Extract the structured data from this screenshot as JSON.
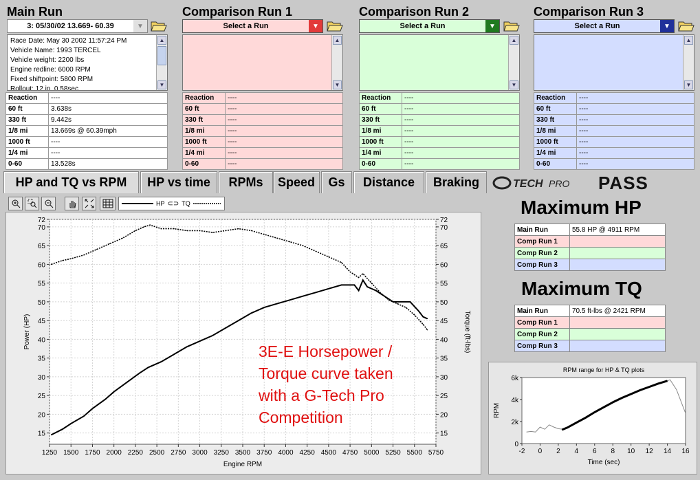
{
  "colors": {
    "main": "#ffffff",
    "comp1": "#ffd9d9",
    "comp2": "#d9ffd9",
    "comp3": "#d3ddff",
    "comp1_drop": "#e23a3a",
    "comp2_drop": "#1f7a1f",
    "comp3_drop": "#20309a"
  },
  "main_run": {
    "title": "Main Run",
    "selected": "3:   05/30/02 13.669- 60.39",
    "info_lines": [
      "Race Date: May 30 2002  11:57:24 PM",
      "Vehicle Name: 1993 TERCEL",
      "Vehicle weight: 2200 lbs",
      "Engine redline: 6000 RPM",
      "Fixed shiftpoint: 5800 RPM",
      "Rollout: 12 in. 0.58sec"
    ],
    "results": [
      {
        "label": "Reaction",
        "value": "----"
      },
      {
        "label": "60 ft",
        "value": "3.638s"
      },
      {
        "label": "330 ft",
        "value": "9.442s"
      },
      {
        "label": "1/8 mi",
        "value": "13.669s @ 60.39mph"
      },
      {
        "label": "1000 ft",
        "value": "----"
      },
      {
        "label": "1/4 mi",
        "value": "----"
      },
      {
        "label": "0-60",
        "value": "13.528s"
      }
    ]
  },
  "comparison_runs": [
    {
      "title": "Comparison Run 1",
      "select_label": "Select a Run",
      "results": [
        {
          "label": "Reaction",
          "value": "----"
        },
        {
          "label": "60 ft",
          "value": "----"
        },
        {
          "label": "330 ft",
          "value": "----"
        },
        {
          "label": "1/8 mi",
          "value": "----"
        },
        {
          "label": "1000 ft",
          "value": "----"
        },
        {
          "label": "1/4 mi",
          "value": "----"
        },
        {
          "label": "0-60",
          "value": "----"
        }
      ]
    },
    {
      "title": "Comparison Run 2",
      "select_label": "Select a Run",
      "results": [
        {
          "label": "Reaction",
          "value": "----"
        },
        {
          "label": "60 ft",
          "value": "----"
        },
        {
          "label": "330 ft",
          "value": "----"
        },
        {
          "label": "1/8 mi",
          "value": "----"
        },
        {
          "label": "1000 ft",
          "value": "----"
        },
        {
          "label": "1/4 mi",
          "value": "----"
        },
        {
          "label": "0-60",
          "value": "----"
        }
      ]
    },
    {
      "title": "Comparison Run 3",
      "select_label": "Select a Run",
      "results": [
        {
          "label": "Reaction",
          "value": "----"
        },
        {
          "label": "60 ft",
          "value": "----"
        },
        {
          "label": "330 ft",
          "value": "----"
        },
        {
          "label": "1/8 mi",
          "value": "----"
        },
        {
          "label": "1000 ft",
          "value": "----"
        },
        {
          "label": "1/4 mi",
          "value": "----"
        },
        {
          "label": "0-60",
          "value": "----"
        }
      ]
    }
  ],
  "tabs": [
    {
      "label": "HP and TQ vs RPM",
      "active": true
    },
    {
      "label": "HP vs time"
    },
    {
      "label": "RPMs"
    },
    {
      "label": "Speed"
    },
    {
      "label": "Gs"
    },
    {
      "label": "Distance"
    },
    {
      "label": "Braking"
    }
  ],
  "brand": {
    "logo_text": "G-TECH PRO",
    "suffix": "PASS"
  },
  "toolbar": {
    "icons": [
      "zoom-icon",
      "zoom-rect-icon",
      "zoom-out-icon",
      "pan-hand-icon",
      "zoom-fit-icon",
      "grid-icon"
    ],
    "legend": {
      "hp": "HP",
      "tq": "TQ"
    }
  },
  "annotation": [
    "3E-E Horsepower /",
    "Torque curve taken",
    "with a G-Tech Pro",
    "Competition"
  ],
  "max_hp": {
    "title": "Maximum HP",
    "rows": [
      {
        "label": "Main Run",
        "value": "55.8 HP @ 4911 RPM"
      },
      {
        "label": "Comp Run 1",
        "value": ""
      },
      {
        "label": "Comp Run 2",
        "value": ""
      },
      {
        "label": "Comp Run 3",
        "value": ""
      }
    ]
  },
  "max_tq": {
    "title": "Maximum TQ",
    "rows": [
      {
        "label": "Main Run",
        "value": "70.5 ft-lbs @ 2421 RPM"
      },
      {
        "label": "Comp Run 1",
        "value": ""
      },
      {
        "label": "Comp Run 2",
        "value": ""
      },
      {
        "label": "Comp Run 3",
        "value": ""
      }
    ]
  },
  "chart_data": [
    {
      "type": "line",
      "xlabel": "Engine RPM",
      "ylabel": "Power (HP)",
      "y2label": "Torque (ft-lbs)",
      "xlim": [
        1250,
        5750
      ],
      "ylim": [
        12,
        72
      ],
      "y2lim": [
        12,
        72
      ],
      "xticks": [
        1250,
        1500,
        1750,
        2000,
        2250,
        2500,
        2750,
        3000,
        3250,
        3500,
        3750,
        4000,
        4250,
        4500,
        4750,
        5000,
        5250,
        5500,
        5750
      ],
      "yticks": [
        15,
        20,
        25,
        30,
        35,
        40,
        45,
        50,
        55,
        60,
        65,
        70,
        72
      ],
      "grid": true,
      "series": [
        {
          "name": "HP",
          "style": "solid",
          "x": [
            1270,
            1400,
            1500,
            1650,
            1750,
            1900,
            2000,
            2150,
            2300,
            2400,
            2550,
            2700,
            2850,
            3000,
            3150,
            3300,
            3450,
            3600,
            3750,
            3900,
            4050,
            4200,
            4350,
            4500,
            4650,
            4800,
            4850,
            4900,
            4950,
            5050,
            5150,
            5250,
            5350,
            5450,
            5550,
            5600,
            5650
          ],
          "y": [
            14.5,
            16,
            17.5,
            19.5,
            21.5,
            24,
            26,
            28.5,
            31,
            32.5,
            34,
            36,
            38,
            39.5,
            41,
            43,
            45,
            47,
            48.5,
            49.5,
            50.5,
            51.5,
            52.5,
            53.5,
            54.5,
            54.5,
            53,
            55.8,
            54,
            53,
            51.5,
            50,
            50,
            50,
            47.5,
            46,
            45.5
          ]
        },
        {
          "name": "TQ",
          "style": "dashed",
          "x": [
            1270,
            1400,
            1500,
            1650,
            1800,
            1950,
            2100,
            2250,
            2350,
            2421,
            2550,
            2700,
            2850,
            3000,
            3150,
            3300,
            3450,
            3600,
            3750,
            3900,
            4050,
            4200,
            4350,
            4500,
            4650,
            4750,
            4850,
            4900,
            5000,
            5100,
            5200,
            5300,
            5400,
            5500,
            5600,
            5650
          ],
          "y": [
            60,
            61,
            61.5,
            62.5,
            64,
            65.5,
            67,
            69,
            70,
            70.5,
            69.5,
            69.5,
            69,
            69,
            68.5,
            69,
            69.5,
            69,
            68,
            67,
            66,
            65,
            63.5,
            62,
            60.5,
            58,
            56.5,
            57.5,
            55,
            52.5,
            50.5,
            49.5,
            48.5,
            46.5,
            44,
            42.5
          ]
        }
      ]
    },
    {
      "type": "line",
      "title": "RPM range for HP & TQ plots",
      "xlabel": "Time (sec)",
      "ylabel": "RPM",
      "xlim": [
        -2,
        16
      ],
      "ylim": [
        0,
        6000
      ],
      "xticks": [
        -2,
        0,
        2,
        4,
        6,
        8,
        10,
        12,
        14,
        16
      ],
      "yticks_labels": [
        "0",
        "2k",
        "4k",
        "6k"
      ],
      "yticks": [
        0,
        2000,
        4000,
        6000
      ],
      "series": [
        {
          "name": "full",
          "style": "thin",
          "x": [
            -1.5,
            -1,
            -0.5,
            0,
            0.5,
            1,
            1.5,
            2,
            2.5,
            3,
            4,
            5,
            6,
            7,
            8,
            9,
            10,
            11,
            12,
            13,
            14,
            14.3,
            15,
            16
          ],
          "y": [
            1050,
            1100,
            1050,
            1500,
            1300,
            1700,
            1500,
            1350,
            1300,
            1450,
            1900,
            2350,
            2850,
            3300,
            3750,
            4150,
            4500,
            4850,
            5150,
            5450,
            5700,
            5800,
            4900,
            2750
          ]
        },
        {
          "name": "plot-range",
          "style": "bold",
          "x": [
            2.4,
            3,
            4,
            5,
            6,
            7,
            8,
            9,
            10,
            11,
            12,
            13,
            14
          ],
          "y": [
            1250,
            1450,
            1900,
            2350,
            2850,
            3300,
            3750,
            4150,
            4500,
            4850,
            5150,
            5450,
            5700
          ]
        }
      ]
    }
  ]
}
